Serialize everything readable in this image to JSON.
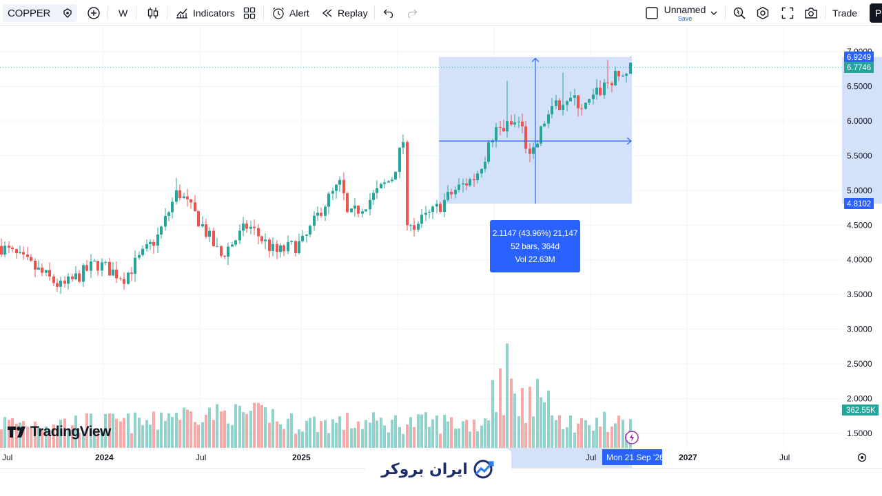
{
  "toolbar": {
    "symbol": "COPPER",
    "interval": "W",
    "indicators_label": "Indicators",
    "alert_label": "Alert",
    "replay_label": "Replay",
    "layout_name": "Unnamed",
    "save_label": "Save",
    "trade_label": "Trade",
    "publish_label": "Pu",
    "icons": [
      "symbol-search-icon",
      "add-symbol-icon",
      "bar-style-icon",
      "indicators-icon",
      "templates-icon",
      "alert-icon",
      "replay-icon",
      "undo-icon",
      "redo-icon",
      "checkbox-icon",
      "chevron-down-icon",
      "quick-search-icon",
      "settings-icon",
      "fullscreen-icon",
      "camera-icon"
    ]
  },
  "chart": {
    "price_axis": [
      "7.0000",
      "6.5000",
      "6.0000",
      "5.5000",
      "5.0000",
      "4.5000",
      "4.0000",
      "3.5000",
      "3.0000",
      "2.5000",
      "2.0000",
      "1.5000"
    ],
    "price_range": [
      1.3,
      7.25
    ],
    "current_price": "6.7746",
    "crosshair_high": "6.9249",
    "crosshair_low": "4.8102",
    "volume_label": "362.55K",
    "time_axis": [
      "Jul",
      "2024",
      "Jul",
      "2025",
      "Jul",
      "2027",
      "Jul"
    ],
    "crosshair_date": "Mon 21 Sep '26",
    "colors": {
      "up": "#26a69a",
      "down": "#ef5350",
      "accent": "#2962ff",
      "range_fill": "#d4e1fb"
    }
  },
  "measure": {
    "line1": "2.1147 (43.96%) 21,147",
    "line2": "52 bars, 364d",
    "line3": "Vol 22.63M"
  },
  "branding": {
    "tradingview": "TradingView",
    "watermark": "ایران بروکر"
  }
}
